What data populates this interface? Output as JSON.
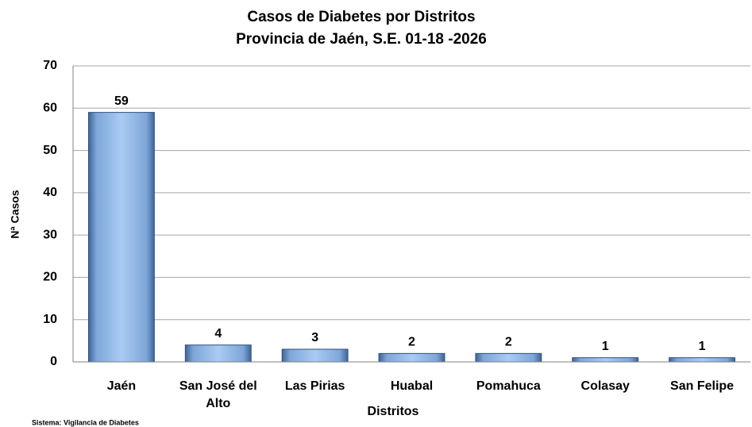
{
  "chart_data": {
    "type": "bar",
    "title": "Casos de Diabetes por Distritos",
    "subtitle": "Provincia de Jaén, S.E. 01-18 -2026",
    "y_label": "Nª Casos",
    "x_label": "Distritos",
    "source": "Sistema: Vigilancia de Diabetes",
    "categories": [
      "Jaén",
      "San José del Alto",
      "Las Pirias",
      "Huabal",
      "Pomahuca",
      "Colasay",
      "San Felipe"
    ],
    "values": [
      59,
      4,
      3,
      2,
      2,
      1,
      1
    ],
    "color": "#8db4e2",
    "ylim": [
      0,
      70
    ],
    "yticks": [
      0,
      10,
      20,
      30,
      40,
      50,
      60,
      70
    ],
    "grid": true
  }
}
